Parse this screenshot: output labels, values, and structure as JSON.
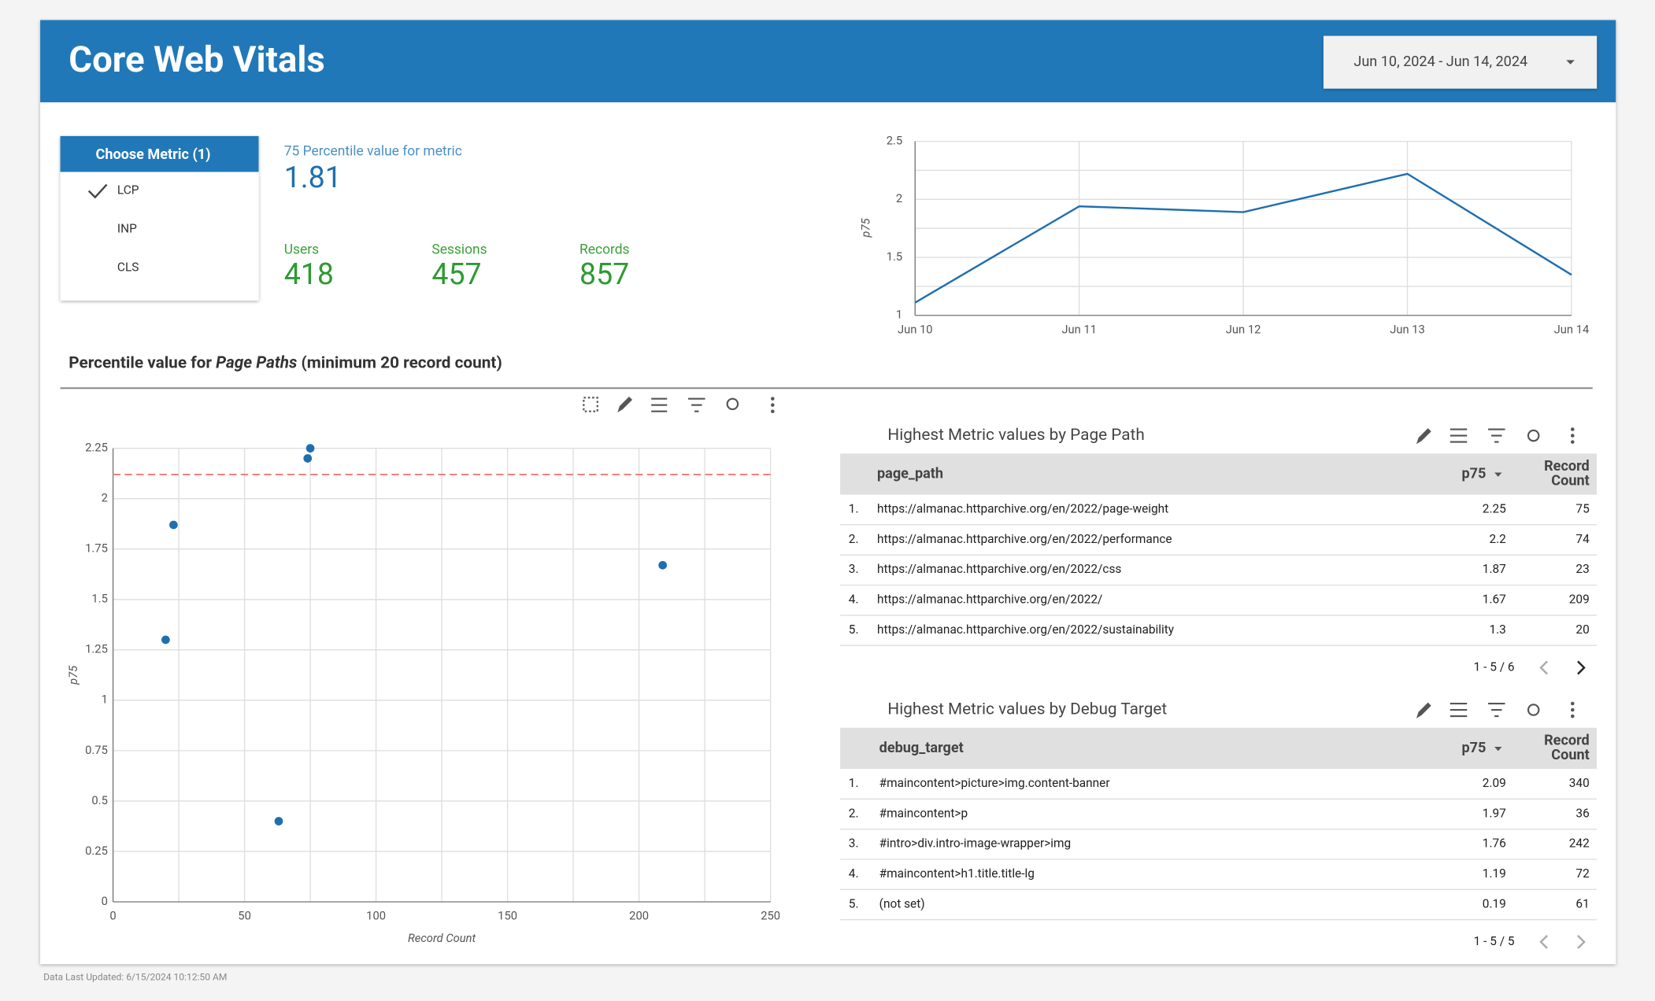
{
  "header": {
    "title": "Core Web Vitals",
    "date_range": "Jun 10, 2024 - Jun 14, 2024"
  },
  "metric_selector": {
    "title": "Choose Metric (1)",
    "options": [
      "LCP",
      "INP",
      "CLS"
    ],
    "selected": 0
  },
  "scorecards": [
    {
      "label": "75 Percentile value for metric",
      "value": 1.81,
      "color": "#1f6fb0",
      "label_color": "#4a90c8"
    },
    {
      "label": "Users",
      "value": 418,
      "color": "#2e9a33",
      "label_color": "#3aa03a"
    },
    {
      "label": "Sessions",
      "value": 457,
      "color": "#2e9a33",
      "label_color": "#3aa03a"
    },
    {
      "label": "Records",
      "value": 857,
      "color": "#2e9a33",
      "label_color": "#3aa03a"
    }
  ],
  "line_chart": {
    "type": "line",
    "y_label": "p75",
    "x": [
      "Jun 10",
      "Jun 11",
      "Jun 12",
      "Jun 13",
      "Jun 14"
    ],
    "values": [
      1.11,
      1.94,
      1.89,
      2.22,
      1.35
    ],
    "color": "#1f6fb0",
    "ylim": [
      1,
      2.5
    ],
    "yticks": [
      1,
      1.5,
      2,
      2.5
    ],
    "minor_yticks": [
      1.25,
      1.75,
      2.25
    ],
    "grid": true
  },
  "section_title": {
    "prefix": "Percentile value for ",
    "emphasis": "Page Paths",
    "suffix": " (minimum 20 record count)"
  },
  "scatter_chart": {
    "type": "scatter",
    "x_label": "Record Count",
    "y_label": "p75",
    "x": [
      75,
      74,
      23,
      209,
      20,
      63
    ],
    "y": [
      2.25,
      2.2,
      1.87,
      1.67,
      1.3,
      0.4
    ],
    "color": "#1f6fb0",
    "xlim": [
      0,
      250
    ],
    "xticks": [
      0,
      50,
      100,
      150,
      200,
      250
    ],
    "minor_xticks": [
      25,
      75,
      125,
      175,
      225
    ],
    "ylim": [
      0,
      2.25
    ],
    "yticks": [
      0,
      0.25,
      0.5,
      0.75,
      1,
      1.25,
      1.5,
      1.75,
      2,
      2.25
    ],
    "reference_line": {
      "value": 2.12,
      "color": "#f08080"
    },
    "grid": true
  },
  "tables": [
    {
      "title": "Highest Metric values by Page Path",
      "columns": [
        "page_path",
        "p75",
        "Record Count"
      ],
      "ranks": [
        "1.",
        "2.",
        "3.",
        "4.",
        "5."
      ],
      "rows": [
        [
          "https://almanac.httparchive.org/en/2022/page-weight",
          2.25,
          75
        ],
        [
          "https://almanac.httparchive.org/en/2022/performance",
          2.2,
          74
        ],
        [
          "https://almanac.httparchive.org/en/2022/css",
          1.87,
          23
        ],
        [
          "https://almanac.httparchive.org/en/2022/",
          1.67,
          209
        ],
        [
          "https://almanac.httparchive.org/en/2022/sustainability",
          1.3,
          20
        ]
      ],
      "pagination": "1 - 5 / 6"
    },
    {
      "title": "Highest Metric values by Debug Target",
      "columns": [
        "debug_target",
        "p75",
        "Record Count"
      ],
      "ranks": [
        "1.",
        "2.",
        "3.",
        "4.",
        "5."
      ],
      "rows": [
        [
          "#maincontent>picture>img.content-banner",
          2.09,
          340
        ],
        [
          "#maincontent>p",
          1.97,
          36
        ],
        [
          "#intro>div.intro-image-wrapper>img",
          1.76,
          242
        ],
        [
          "#maincontent>h1.title.title-lg",
          1.19,
          72
        ],
        [
          "(not set)",
          0.19,
          61
        ]
      ],
      "pagination": "1 - 5 / 5"
    }
  ],
  "footer": {
    "updated": "Data Last Updated: 6/15/2024 10:12:50 AM"
  }
}
